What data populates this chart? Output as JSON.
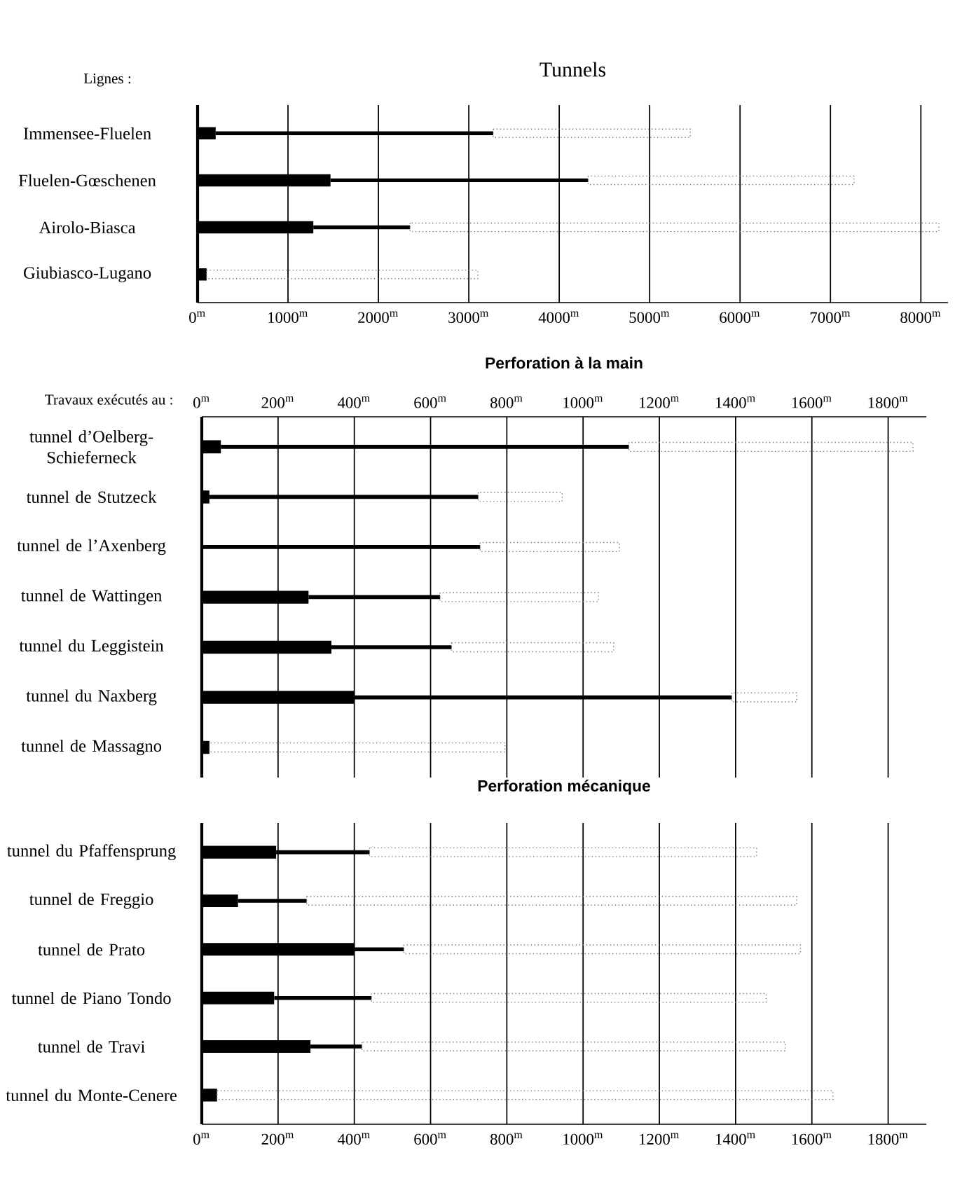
{
  "chart_data": [
    {
      "type": "bar",
      "orientation": "horizontal",
      "title": "Tunnels",
      "ylabel": "Lignes :",
      "grid": "x",
      "categories": [
        "Immensee-Fluelen",
        "Fluelen-Gœschenen",
        "Airolo-Biasca",
        "Giubiasco-Lugano"
      ],
      "series": [
        {
          "color": "#000000",
          "line_style": "solid",
          "values": [
            200,
            1470,
            1280,
            100
          ]
        },
        {
          "color": "#000000",
          "line_style": "solid",
          "values": [
            3070,
            2850,
            1070,
            null
          ]
        },
        {
          "color": "#777777",
          "line_style": "dotted",
          "values": [
            2180,
            2940,
            5850,
            3000
          ]
        }
      ],
      "stacked": true,
      "xlim": [
        0,
        8300
      ],
      "xticks": [
        {
          "value": 0,
          "label": "0$^{m}$"
        },
        {
          "value": 1000,
          "label": "1000$^{m}$"
        },
        {
          "value": 2000,
          "label": "2000$^{m}$"
        },
        {
          "value": 3000,
          "label": "3000$^{m}$"
        },
        {
          "value": 4000,
          "label": "4000$^{m}$"
        },
        {
          "value": 5000,
          "label": "5000$^{m}$"
        },
        {
          "value": 6000,
          "label": "6000$^{m}$"
        },
        {
          "value": 7000,
          "label": "7000$^{m}$"
        },
        {
          "value": 8000,
          "label": "8000$^{m}$"
        }
      ]
    },
    {
      "type": "bar",
      "orientation": "horizontal",
      "title": "Perforation à la main",
      "ylabel": "Travaux exécutés au :",
      "grid": "x",
      "categories": [
        "tunnel d’Oelberg-Schieferneck",
        "tunnel de Stutzeck",
        "tunnel de l’Axenberg",
        "tunnel de Wattingen",
        "tunnel du Leggistein",
        "tunnel du Naxberg",
        "tunnel de Massagno"
      ],
      "series": [
        {
          "color": "#000000",
          "line_style": "solid",
          "values": [
            50,
            20,
            null,
            280,
            340,
            400,
            20
          ]
        },
        {
          "color": "#000000",
          "line_style": "solid",
          "values": [
            1070,
            705,
            730,
            345,
            315,
            990,
            null
          ]
        },
        {
          "color": "#777777",
          "line_style": "dotted",
          "values": [
            745,
            220,
            365,
            415,
            425,
            170,
            775
          ]
        }
      ],
      "stacked": true,
      "xlim": [
        0,
        1900
      ],
      "xticks": [
        {
          "value": 0,
          "label": "0$^{m}$"
        },
        {
          "value": 200,
          "label": "200$^{m}$"
        },
        {
          "value": 400,
          "label": "400$^{m}$"
        },
        {
          "value": 600,
          "label": "600$^{m}$"
        },
        {
          "value": 800,
          "label": "800$^{m}$"
        },
        {
          "value": 1000,
          "label": "1000$^{m}$"
        },
        {
          "value": 1200,
          "label": "1200$^{m}$"
        },
        {
          "value": 1400,
          "label": "1400$^{m}$"
        },
        {
          "value": 1600,
          "label": "1600$^{m}$"
        },
        {
          "value": 1800,
          "label": "1800$^{m}$"
        }
      ]
    },
    {
      "type": "bar",
      "orientation": "horizontal",
      "title": "Perforation mécanique",
      "grid": "x",
      "categories": [
        "tunnel du Pfaffensprung",
        "tunnel de Freggio",
        "tunnel de Prato",
        "tunnel de Piano Tondo",
        "tunnel de Travi",
        "tunnel du Monte-Cenere"
      ],
      "series": [
        {
          "color": "#000000",
          "line_style": "solid",
          "values": [
            195,
            95,
            400,
            190,
            285,
            40
          ]
        },
        {
          "color": "#000000",
          "line_style": "solid",
          "values": [
            245,
            180,
            130,
            255,
            135,
            null
          ]
        },
        {
          "color": "#777777",
          "line_style": "dotted",
          "values": [
            1015,
            1285,
            1040,
            1035,
            1110,
            1615
          ]
        }
      ],
      "stacked": true,
      "xlim": [
        0,
        1900
      ],
      "xticks": [
        {
          "value": 0,
          "label": "0$^{m}$"
        },
        {
          "value": 200,
          "label": "200$^{m}$"
        },
        {
          "value": 400,
          "label": "400$^{m}$"
        },
        {
          "value": 600,
          "label": "600$^{m}$"
        },
        {
          "value": 800,
          "label": "800$^{m}$"
        },
        {
          "value": 1000,
          "label": "1000$^{m}$"
        },
        {
          "value": 1200,
          "label": "1200$^{m}$"
        },
        {
          "value": 1400,
          "label": "1400$^{m}$"
        },
        {
          "value": 1600,
          "label": "1600$^{m}$"
        },
        {
          "value": 1800,
          "label": "1800$^{m}$"
        }
      ]
    }
  ]
}
